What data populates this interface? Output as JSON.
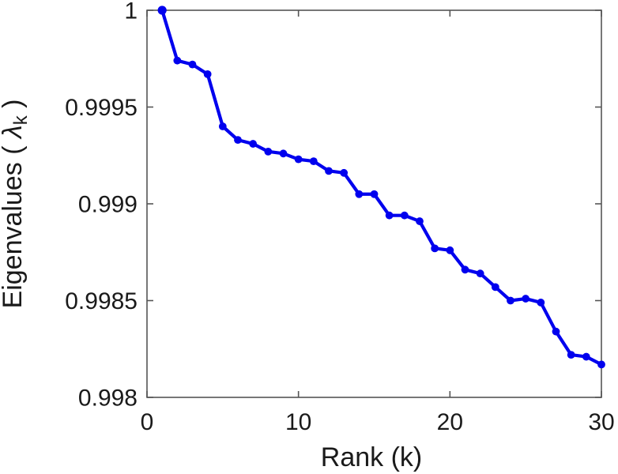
{
  "figure": {
    "background": "#ffffff",
    "colors": {
      "line": "#0000ee",
      "axis": "#555555",
      "text": "#1a1a1a"
    }
  },
  "chart_data": {
    "type": "line",
    "title": "",
    "xlabel": "Rank (k)",
    "ylabel": "Eigenvalues ( λk )",
    "ylabel_parts": {
      "prefix": "Eigenvalues ( ",
      "symbol": "λ",
      "subscript": "k",
      "suffix": " )"
    },
    "xlim": [
      0,
      30
    ],
    "ylim": [
      0.998,
      1.0
    ],
    "x_ticks": {
      "values": [
        0,
        10,
        20,
        30
      ],
      "labels": [
        "0",
        "10",
        "20",
        "30"
      ]
    },
    "y_ticks": {
      "values": [
        0.998,
        0.9985,
        0.999,
        0.9995,
        1
      ],
      "labels": [
        "0.998",
        "0.9985",
        "0.999",
        "0.9995",
        "1"
      ]
    },
    "grid": false,
    "box": true,
    "legend": null,
    "series": [
      {
        "name": "eigenvalues",
        "color": "#0000ee",
        "marker": "dot",
        "x": [
          1,
          2,
          3,
          4,
          5,
          6,
          7,
          8,
          9,
          10,
          11,
          12,
          13,
          14,
          15,
          16,
          17,
          18,
          19,
          20,
          21,
          22,
          23,
          24,
          25,
          26,
          27,
          28,
          29,
          30
        ],
        "y": [
          1.0,
          0.99974,
          0.99972,
          0.99967,
          0.9994,
          0.99933,
          0.99931,
          0.99927,
          0.99926,
          0.99923,
          0.99922,
          0.99917,
          0.99916,
          0.99905,
          0.99905,
          0.99894,
          0.99894,
          0.99891,
          0.99877,
          0.99876,
          0.99866,
          0.99864,
          0.99857,
          0.9985,
          0.99851,
          0.99849,
          0.99834,
          0.99822,
          0.99821,
          0.99817
        ]
      }
    ]
  }
}
